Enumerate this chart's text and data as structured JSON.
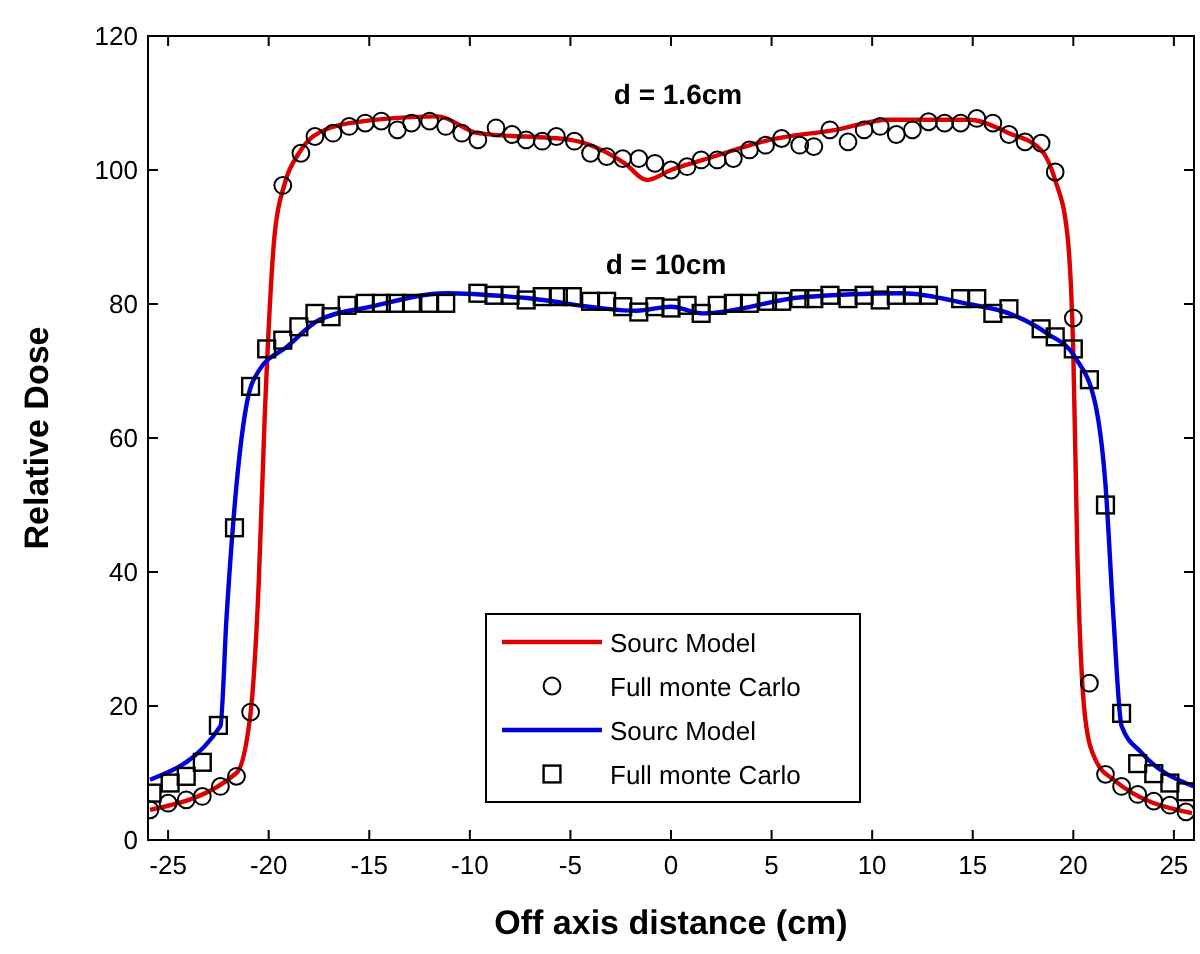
{
  "chart_data": {
    "type": "line",
    "xlabel": "Off axis distance (cm)",
    "ylabel": "Relative Dose",
    "xlim": [
      -26,
      26
    ],
    "ylim": [
      0,
      120
    ],
    "xticks": [
      -25,
      -20,
      -15,
      -10,
      -5,
      0,
      5,
      10,
      15,
      20,
      25
    ],
    "yticks": [
      0,
      20,
      40,
      60,
      80,
      100,
      120
    ],
    "grid": false,
    "legend": "bottom",
    "annotations": [
      "d = 1.6cm",
      "d = 10cm"
    ],
    "series": [
      {
        "name": "Sourc Model",
        "color": "#dd0000",
        "marker": "none",
        "x": [
          -25.9,
          -21.6,
          -20.9,
          -20.5,
          -20.2,
          -19.7,
          -19.2,
          -18.5,
          -17.8,
          -16,
          -11.6,
          -9.6,
          -5,
          -2.3,
          -1.2,
          0,
          1.6,
          4.9,
          8.2,
          10.8,
          14.8,
          16.8,
          18.4,
          19.1,
          19.7,
          20,
          20.2,
          20.6,
          21.1,
          22,
          25.9
        ],
        "values": [
          4.5,
          10,
          19,
          38,
          63,
          90.5,
          98,
          102.5,
          105,
          107,
          108,
          105.5,
          104.5,
          101,
          98.5,
          100,
          101.5,
          104.5,
          106,
          107.5,
          107.5,
          105.5,
          103,
          98.5,
          90.5,
          72.6,
          43,
          18,
          12,
          9,
          4
        ]
      },
      {
        "name": "Full monte Carlo",
        "type": "scatter",
        "color": "#000000",
        "marker": "circle",
        "x": [
          -25.9,
          -25,
          -24.1,
          -23.3,
          -22.4,
          -21.6,
          -20.9,
          -19.3,
          -18.4,
          -17.7,
          -16.8,
          -16,
          -15.2,
          -14.4,
          -13.6,
          -12.9,
          -12,
          -11.2,
          -10.4,
          -9.6,
          -8.7,
          -7.9,
          -7.2,
          -6.4,
          -5.7,
          -4.8,
          -4,
          -3.2,
          -2.4,
          -1.6,
          -0.8,
          0,
          0.8,
          1.5,
          2.3,
          3.1,
          3.9,
          4.7,
          5.5,
          6.4,
          7.1,
          7.9,
          8.8,
          9.6,
          10.4,
          11.2,
          12,
          12.8,
          13.6,
          14.4,
          15.2,
          16,
          16.8,
          17.6,
          18.4,
          19.1,
          20,
          20.8,
          21.6,
          22.4,
          23.2,
          24,
          24.8,
          25.6
        ],
        "values": [
          4.5,
          5.5,
          6,
          6.5,
          8,
          9.5,
          19.1,
          97.7,
          102.5,
          105,
          105.5,
          106.5,
          107,
          107.3,
          106,
          107,
          107.3,
          106.5,
          105.5,
          104.5,
          106.3,
          105.3,
          104.5,
          104.3,
          105,
          104.3,
          102.5,
          102,
          101.7,
          101.7,
          101,
          100,
          100.5,
          101.5,
          101.5,
          101.7,
          103,
          103.7,
          104.7,
          103.7,
          103.5,
          106,
          104.2,
          106,
          106.5,
          105.3,
          106,
          107.2,
          107,
          107,
          107.7,
          107,
          105.3,
          104.2,
          104,
          99.7,
          77.9,
          23.4,
          9.8,
          8,
          6.8,
          5.8,
          5.2,
          4.2
        ]
      },
      {
        "name": "Sourc Model",
        "color": "#0000dd",
        "marker": "none",
        "x": [
          -25.9,
          -22.4,
          -22.1,
          -21.6,
          -21.1,
          -20.5,
          -19.1,
          -17.5,
          -14.9,
          -11.2,
          -7.6,
          -1.7,
          0,
          1.6,
          6.5,
          11.5,
          14.8,
          16.8,
          18.7,
          20.1,
          21.1,
          21.6,
          22,
          22.4,
          23.4,
          26
        ],
        "values": [
          9,
          17,
          33,
          53,
          65,
          70,
          73.6,
          77.6,
          79.6,
          81.6,
          81,
          79,
          79.6,
          78.6,
          81,
          81.6,
          80,
          78.6,
          75.6,
          72,
          65,
          53,
          33,
          17,
          13,
          8
        ]
      },
      {
        "name": "Full monte Carlo",
        "type": "scatter",
        "color": "#000000",
        "marker": "square",
        "x": [
          -25.8,
          -24.9,
          -24.1,
          -23.3,
          -22.5,
          -21.7,
          -20.9,
          -20.1,
          -19.3,
          -18.5,
          -17.7,
          -16.9,
          -16.1,
          -15.2,
          -14.4,
          -13.7,
          -12.9,
          -12,
          -11.2,
          -9.6,
          -8.8,
          -8,
          -7.2,
          -6.4,
          -5.6,
          -4.9,
          -4,
          -3.2,
          -2.4,
          -1.6,
          -0.8,
          0,
          0.8,
          1.5,
          2.3,
          3.1,
          3.9,
          4.8,
          5.5,
          6.4,
          7.1,
          7.9,
          8.8,
          9.6,
          10.4,
          11.2,
          12,
          12.8,
          14.4,
          15.2,
          16,
          16.8,
          18.4,
          19.1,
          20,
          20.8,
          21.6,
          22.4,
          23.2,
          24,
          24.8,
          25.6
        ],
        "values": [
          7,
          8.5,
          9.5,
          11.6,
          17.1,
          46.6,
          67.7,
          73.3,
          74.6,
          76.6,
          78.6,
          78.1,
          79.8,
          80.1,
          80.1,
          80.1,
          80.1,
          80.1,
          80.1,
          81.6,
          81.3,
          81.3,
          80.6,
          81.1,
          81.1,
          81.1,
          80.4,
          80.4,
          79.6,
          78.8,
          79.6,
          79.4,
          79.8,
          78.6,
          79.8,
          80.1,
          80.1,
          80.4,
          80.4,
          80.8,
          80.8,
          81.3,
          80.8,
          81.3,
          80.6,
          81.3,
          81.3,
          81.3,
          80.8,
          80.8,
          78.6,
          79.3,
          76.3,
          75.1,
          73.3,
          68.7,
          50,
          18.9,
          11.4,
          9.9,
          8.5,
          7.2
        ]
      }
    ]
  }
}
